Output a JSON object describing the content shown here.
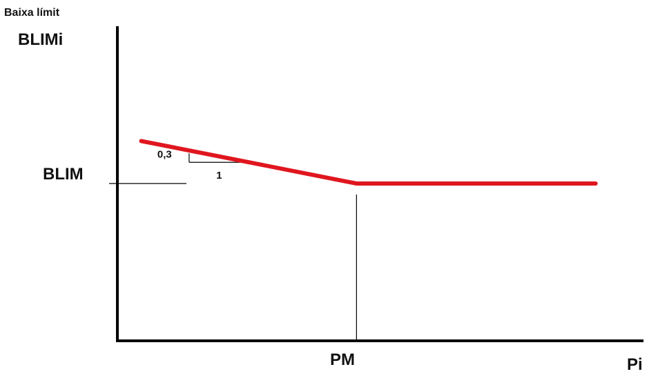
{
  "chart_data": {
    "type": "line",
    "ylabel_line1": "Baixa límit",
    "ylabel_line2": "BLIMi",
    "xlabel": "Pi",
    "x_reference_label": "PM",
    "y_reference_label": "BLIM",
    "slope_rise_label": "0,3",
    "slope_run_label": "1",
    "series": [
      {
        "x": [
          0.1,
          1.0,
          2.0
        ],
        "y": [
          1.27,
          1.0,
          1.0
        ]
      }
    ],
    "x_reference": 1.0,
    "y_reference": 1.0,
    "xlim": [
      0,
      2.2
    ],
    "ylim": [
      0,
      2.0
    ],
    "grid": false,
    "colors": {
      "series": "#e0161f",
      "axes": "#000000",
      "guides": "#000000"
    }
  }
}
